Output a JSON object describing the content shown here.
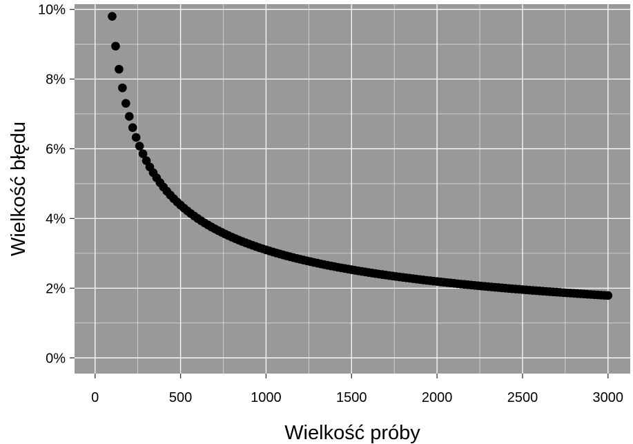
{
  "chart_data": {
    "type": "scatter",
    "title": "",
    "xlabel": "Wielkość próby",
    "ylabel": "Wielkość błędu",
    "xlim": [
      -120,
      3130
    ],
    "ylim": [
      -0.0045,
      0.1015
    ],
    "x_ticks": [
      0,
      500,
      1000,
      1500,
      2000,
      2500,
      3000
    ],
    "x_tick_labels": [
      "0",
      "500",
      "1000",
      "1500",
      "2000",
      "2500",
      "3000"
    ],
    "y_ticks": [
      0,
      0.02,
      0.04,
      0.06,
      0.08,
      0.1
    ],
    "y_tick_labels": [
      "0%",
      "2%",
      "4%",
      "6%",
      "8%",
      "10%"
    ],
    "grid": true,
    "legend": "none",
    "formula": "y = 0.98 / sqrt(x)",
    "x_range": [
      100,
      3000
    ],
    "x_step": 20,
    "colors": {
      "panel_background": "#999999",
      "grid": "#ffffff",
      "points": "#000000"
    },
    "series": [
      {
        "x": [
          100,
          120,
          140,
          160,
          180,
          200,
          220,
          240,
          260,
          280,
          300,
          400,
          500,
          600,
          700,
          800,
          1000,
          1200,
          1500,
          2000,
          2500,
          3000
        ],
        "y": [
          0.098,
          0.0895,
          0.0828,
          0.0775,
          0.073,
          0.0693,
          0.0661,
          0.0633,
          0.0608,
          0.0586,
          0.0566,
          0.049,
          0.0438,
          0.04,
          0.037,
          0.0346,
          0.031,
          0.0283,
          0.0253,
          0.0219,
          0.0196,
          0.0179
        ]
      }
    ]
  }
}
